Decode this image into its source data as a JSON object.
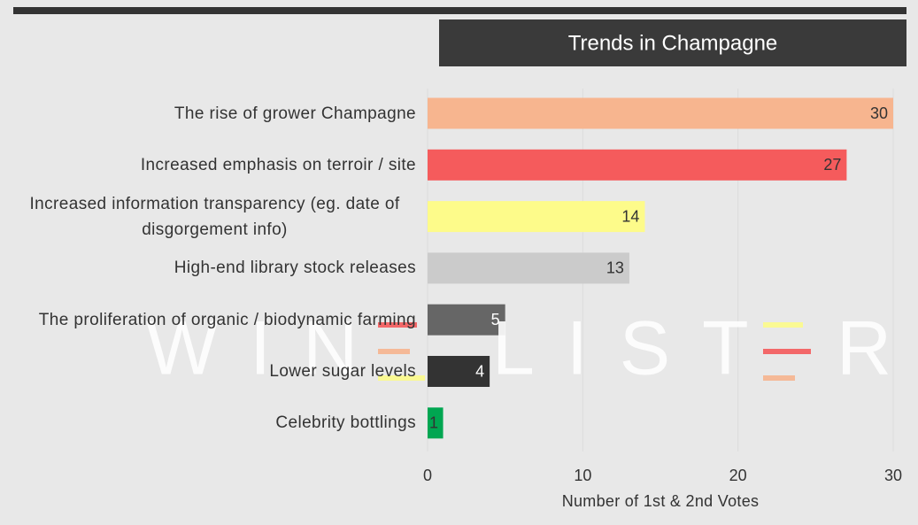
{
  "chart_data": {
    "type": "hbar",
    "title": "Trends in Champagne",
    "categories": [
      "The rise of grower Champagne",
      "Increased emphasis on terroir / site",
      "Increased information transparency (eg. date of disgorgement info)",
      "High-end library stock releases",
      "The proliferation of organic / biodynamic farming",
      "Lower sugar levels",
      "Celebrity bottlings"
    ],
    "values": [
      30,
      27,
      14,
      13,
      5,
      4,
      1
    ],
    "colors": [
      "#f7b58f",
      "#f55b5c",
      "#fdfb8a",
      "#cbcbcb",
      "#666666",
      "#333333",
      "#00a651"
    ],
    "xlim": [
      0,
      30
    ],
    "xticks": [
      0,
      10,
      20,
      30
    ],
    "grid": true,
    "x_label": "Number of 1st & 2nd Votes",
    "watermark": [
      "WIN",
      "LIST",
      "R"
    ]
  }
}
